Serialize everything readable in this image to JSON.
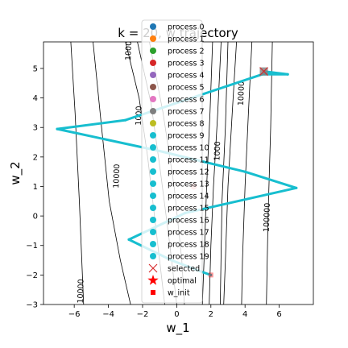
{
  "chart_data": {
    "type": "scatter",
    "title": "k = 20, w trajectory",
    "xlabel": "w_1",
    "ylabel": "w_2",
    "xlim": [
      -7.8,
      8.0
    ],
    "ylim": [
      -3.0,
      5.9
    ],
    "xticks": [
      -6,
      -4,
      -2,
      0,
      2,
      4,
      6
    ],
    "yticks": [
      -3,
      -2,
      -1,
      0,
      1,
      2,
      3,
      4,
      5
    ],
    "xtick_labels": [
      "−6",
      "−4",
      "−2",
      "0",
      "2",
      "4",
      "6"
    ],
    "ytick_labels": [
      "−3",
      "−2",
      "−1",
      "0",
      "1",
      "2",
      "3",
      "4",
      "5"
    ],
    "grid": false,
    "legend_position": "top-center",
    "contour_labels": [
      {
        "text": "10000",
        "x": -3.5,
        "y": 1.35
      },
      {
        "text": "10000",
        "x": -5.6,
        "y": -2.55
      },
      {
        "text": "10000",
        "x": 3.8,
        "y": 4.15
      },
      {
        "text": "100000",
        "x": 5.3,
        "y": -0.05
      },
      {
        "text": "1000",
        "x": 2.4,
        "y": 2.2
      },
      {
        "text": "1000",
        "x": -2.8,
        "y": 5.6
      },
      {
        "text": "1000",
        "x": -2.2,
        "y": 3.4
      }
    ],
    "trajectory": {
      "color": "#17becf",
      "points": [
        [
          2.0,
          -2.0
        ],
        [
          1.5,
          -1.9
        ],
        [
          -0.3,
          -1.5
        ],
        [
          -2.8,
          -0.8
        ],
        [
          0.5,
          0.1
        ],
        [
          7.0,
          0.95
        ],
        [
          4.0,
          1.5
        ],
        [
          -1.0,
          2.2
        ],
        [
          -7.0,
          2.95
        ],
        [
          -3.0,
          3.25
        ],
        [
          5.0,
          4.8
        ],
        [
          6.5,
          4.8
        ],
        [
          5.1,
          4.9
        ]
      ]
    },
    "markers": {
      "selected": {
        "x": 5.1,
        "y": 4.9,
        "color": "#d62728"
      },
      "optimal": {
        "x": 1.0,
        "y": 1.0,
        "color": "#ff0000"
      },
      "w_init": {
        "x": 2.0,
        "y": -2.0,
        "color": "#ff0000"
      }
    },
    "legend": [
      {
        "label": "process 0",
        "kind": "circle",
        "color": "#1f77b4"
      },
      {
        "label": "process 1",
        "kind": "circle",
        "color": "#ff7f0e"
      },
      {
        "label": "process 2",
        "kind": "circle",
        "color": "#2ca02c"
      },
      {
        "label": "process 3",
        "kind": "circle",
        "color": "#d62728"
      },
      {
        "label": "process 4",
        "kind": "circle",
        "color": "#9467bd"
      },
      {
        "label": "process 5",
        "kind": "circle",
        "color": "#8c564b"
      },
      {
        "label": "process 6",
        "kind": "circle",
        "color": "#e377c2"
      },
      {
        "label": "process 7",
        "kind": "circle",
        "color": "#7f7f7f"
      },
      {
        "label": "process 8",
        "kind": "circle",
        "color": "#bcbd22"
      },
      {
        "label": "process 9",
        "kind": "circle",
        "color": "#17becf"
      },
      {
        "label": "process 10",
        "kind": "circle",
        "color": "#17becf"
      },
      {
        "label": "process 11",
        "kind": "circle",
        "color": "#17becf"
      },
      {
        "label": "process 12",
        "kind": "circle",
        "color": "#17becf"
      },
      {
        "label": "process 13",
        "kind": "circle",
        "color": "#17becf"
      },
      {
        "label": "process 14",
        "kind": "circle",
        "color": "#17becf"
      },
      {
        "label": "process 15",
        "kind": "circle",
        "color": "#17becf"
      },
      {
        "label": "process 16",
        "kind": "circle",
        "color": "#17becf"
      },
      {
        "label": "process 17",
        "kind": "circle",
        "color": "#17becf"
      },
      {
        "label": "process 18",
        "kind": "circle",
        "color": "#17becf"
      },
      {
        "label": "process 19",
        "kind": "circle",
        "color": "#17becf"
      },
      {
        "label": "selected",
        "kind": "x",
        "color": "#d62728"
      },
      {
        "label": "optimal",
        "kind": "star",
        "color": "#ff0000"
      },
      {
        "label": "w_init",
        "kind": "square",
        "color": "#ff0000"
      }
    ]
  }
}
